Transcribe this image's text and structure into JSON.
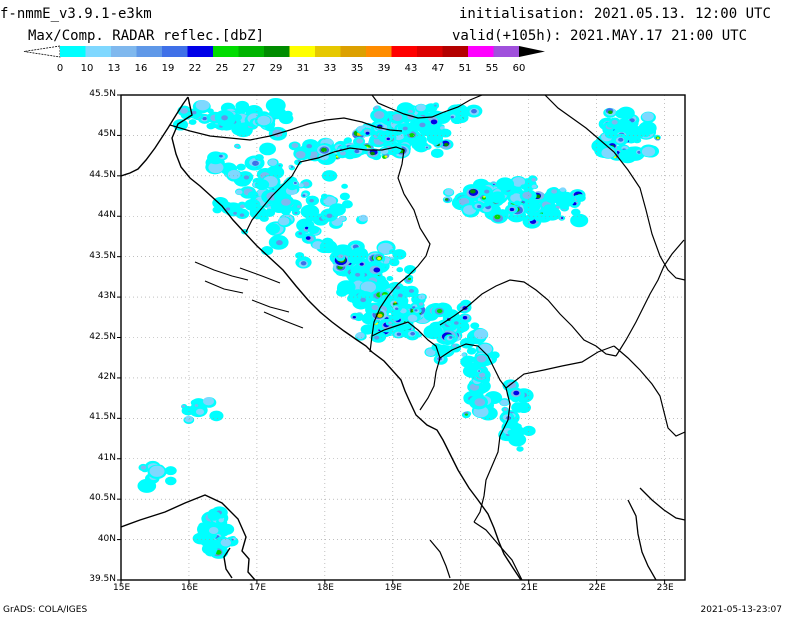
{
  "header": {
    "model": "f-nmmE_v3.9.1-e3km",
    "field": "Max/Comp. RADAR reflec.[dbZ]",
    "initialisation_label": "initialisation:",
    "initialisation_value": "2021.05.13. 12:00 UTC",
    "valid_label": "valid(+105h):",
    "valid_value": "2021.MAY.17 21:00 UTC"
  },
  "colorbar": {
    "labels": [
      "0",
      "10",
      "13",
      "16",
      "19",
      "22",
      "25",
      "27",
      "29",
      "31",
      "33",
      "35",
      "39",
      "43",
      "47",
      "51",
      "55",
      "60"
    ],
    "colors": [
      "#00ffff",
      "#7fd8ff",
      "#7fb8ee",
      "#5f98e8",
      "#3f70e8",
      "#0000e8",
      "#00dc00",
      "#00b400",
      "#008c00",
      "#ffff00",
      "#e6c800",
      "#dca000",
      "#ff8c00",
      "#ff0000",
      "#dc0000",
      "#b40000",
      "#ff00ff",
      "#a050dc",
      "#000000"
    ]
  },
  "map": {
    "lat_labels": [
      "45.5N",
      "45N",
      "44.5N",
      "44N",
      "43.5N",
      "43N",
      "42.5N",
      "42N",
      "41.5N",
      "41N",
      "40.5N",
      "40N",
      "39.5N"
    ],
    "lon_labels": [
      "15E",
      "16E",
      "17E",
      "18E",
      "19E",
      "20E",
      "21E",
      "22E",
      "23E"
    ],
    "lat_range": [
      39.5,
      45.5
    ],
    "lon_range": [
      15,
      23.3
    ],
    "grid": "dotted"
  },
  "footer": {
    "left": "GrADS: COLA/IGES",
    "right": "2021-05-13-23:07"
  }
}
